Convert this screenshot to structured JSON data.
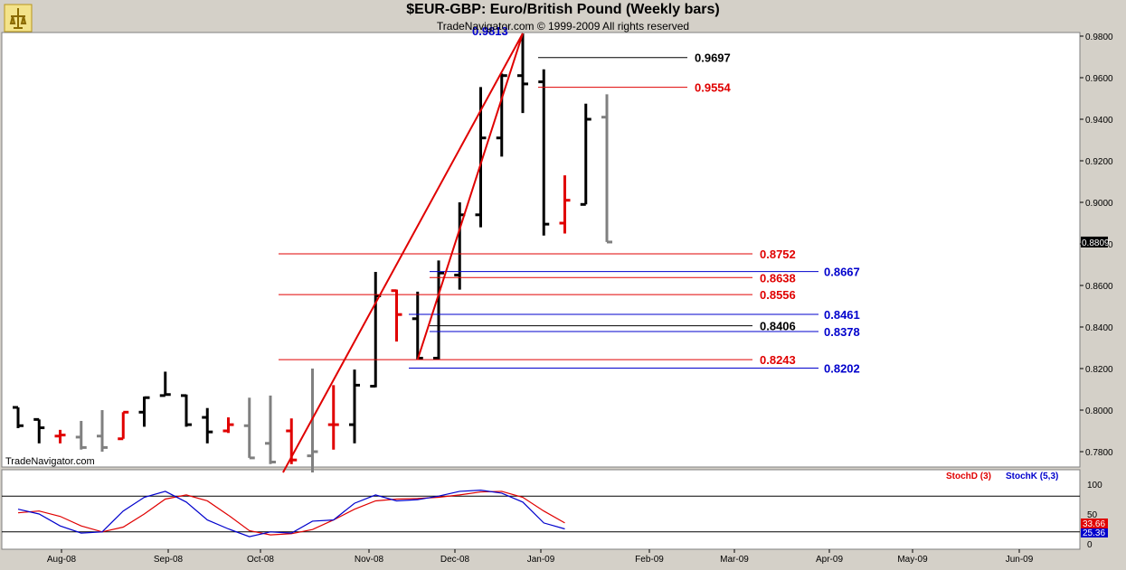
{
  "header": {
    "title": "$EUR-GBP:  Euro/British Pound  (Weekly bars)",
    "copyright": "TradeNavigator.com © 1999-2009 All rights reserved",
    "watermark": "TradeNavigator.com"
  },
  "chart_data": {
    "type": "ohlc",
    "ylim": [
      0.77,
      0.985
    ],
    "y_ticks": [
      "0.9800",
      "0.9600",
      "0.9400",
      "0.9200",
      "0.9000",
      "0.8800",
      "0.8600",
      "0.8400",
      "0.8200",
      "0.8000",
      "0.7800"
    ],
    "current_price_label": "0.8809",
    "x_labels": [
      "Aug-08",
      "Sep-08",
      "Oct-08",
      "Nov-08",
      "Dec-08",
      "Jan-09",
      "Feb-09",
      "Mar-09",
      "Apr-09",
      "May-09",
      "Jun-09"
    ],
    "top_label": "0.9813",
    "bars": [
      {
        "o": 0.8013,
        "h": 0.8013,
        "l": 0.7913,
        "c": 0.7925,
        "color": "#000000"
      },
      {
        "o": 0.7955,
        "h": 0.7955,
        "l": 0.784,
        "c": 0.7915,
        "color": "#000000"
      },
      {
        "o": 0.7875,
        "h": 0.7905,
        "l": 0.784,
        "c": 0.788,
        "color": "#e00000"
      },
      {
        "o": 0.787,
        "h": 0.7948,
        "l": 0.781,
        "c": 0.782,
        "color": "#808080"
      },
      {
        "o": 0.7875,
        "h": 0.8,
        "l": 0.78,
        "c": 0.782,
        "color": "#808080"
      },
      {
        "o": 0.7862,
        "h": 0.799,
        "l": 0.7862,
        "c": 0.799,
        "color": "#e00000"
      },
      {
        "o": 0.799,
        "h": 0.8065,
        "l": 0.792,
        "c": 0.806,
        "color": "#000000"
      },
      {
        "o": 0.807,
        "h": 0.8185,
        "l": 0.807,
        "c": 0.8075,
        "color": "#000000"
      },
      {
        "o": 0.807,
        "h": 0.8075,
        "l": 0.792,
        "c": 0.793,
        "color": "#000000"
      },
      {
        "o": 0.7965,
        "h": 0.801,
        "l": 0.784,
        "c": 0.7895,
        "color": "#000000"
      },
      {
        "o": 0.79,
        "h": 0.7965,
        "l": 0.789,
        "c": 0.793,
        "color": "#e00000"
      },
      {
        "o": 0.7925,
        "h": 0.806,
        "l": 0.777,
        "c": 0.777,
        "color": "#808080"
      },
      {
        "o": 0.784,
        "h": 0.807,
        "l": 0.774,
        "c": 0.775,
        "color": "#808080"
      },
      {
        "o": 0.79,
        "h": 0.796,
        "l": 0.774,
        "c": 0.776,
        "color": "#e00000"
      },
      {
        "o": 0.778,
        "h": 0.82,
        "l": 0.77,
        "c": 0.78,
        "color": "#808080"
      },
      {
        "o": 0.793,
        "h": 0.812,
        "l": 0.781,
        "c": 0.793,
        "color": "#e00000"
      },
      {
        "o": 0.793,
        "h": 0.8195,
        "l": 0.784,
        "c": 0.812,
        "color": "#000000"
      },
      {
        "o": 0.8115,
        "h": 0.8665,
        "l": 0.811,
        "c": 0.855,
        "color": "#000000"
      },
      {
        "o": 0.8575,
        "h": 0.858,
        "l": 0.833,
        "c": 0.846,
        "color": "#e00000"
      },
      {
        "o": 0.844,
        "h": 0.857,
        "l": 0.8243,
        "c": 0.825,
        "color": "#000000"
      },
      {
        "o": 0.825,
        "h": 0.872,
        "l": 0.8243,
        "c": 0.866,
        "color": "#000000"
      },
      {
        "o": 0.865,
        "h": 0.9,
        "l": 0.858,
        "c": 0.894,
        "color": "#000000"
      },
      {
        "o": 0.894,
        "h": 0.9555,
        "l": 0.888,
        "c": 0.931,
        "color": "#000000"
      },
      {
        "o": 0.931,
        "h": 0.962,
        "l": 0.922,
        "c": 0.961,
        "color": "#000000"
      },
      {
        "o": 0.961,
        "h": 0.9813,
        "l": 0.943,
        "c": 0.957,
        "color": "#000000"
      },
      {
        "o": 0.958,
        "h": 0.964,
        "l": 0.884,
        "c": 0.8895,
        "color": "#000000"
      },
      {
        "o": 0.89,
        "h": 0.913,
        "l": 0.885,
        "c": 0.901,
        "color": "#e00000"
      },
      {
        "o": 0.899,
        "h": 0.9475,
        "l": 0.899,
        "c": 0.94,
        "color": "#000000"
      },
      {
        "o": 0.941,
        "h": 0.952,
        "l": 0.8809,
        "c": 0.8809,
        "color": "#808080"
      }
    ],
    "levels": [
      {
        "value": 0.9697,
        "label": "0.9697",
        "color": "#000000"
      },
      {
        "value": 0.9554,
        "label": "0.9554",
        "color": "#e00000"
      },
      {
        "value": 0.8752,
        "label": "0.8752",
        "color": "#e00000"
      },
      {
        "value": 0.8667,
        "label": "0.8667",
        "color": "#0000cc"
      },
      {
        "value": 0.8638,
        "label": "0.8638",
        "color": "#e00000"
      },
      {
        "value": 0.8556,
        "label": "0.8556",
        "color": "#e00000"
      },
      {
        "value": 0.8461,
        "label": "0.8461",
        "color": "#0000cc"
      },
      {
        "value": 0.8406,
        "label": "0.8406",
        "color": "#000000"
      },
      {
        "value": 0.8378,
        "label": "0.8378",
        "color": "#0000cc"
      },
      {
        "value": 0.8243,
        "label": "0.8243",
        "color": "#e00000"
      },
      {
        "value": 0.8202,
        "label": "0.8202",
        "color": "#0000cc"
      }
    ],
    "stochastic": {
      "legend_d": "StochD (3)",
      "legend_k": "StochK (5,3)",
      "ticks": [
        "100",
        "50",
        "0"
      ],
      "value_d_label": "33.66",
      "value_k_label": "25.36",
      "d_values": [
        52,
        55,
        46,
        30,
        20,
        28,
        50,
        75,
        82,
        72,
        48,
        22,
        15,
        17,
        24,
        40,
        58,
        72,
        75,
        76,
        78,
        82,
        87,
        88,
        78,
        55,
        35
      ],
      "k_values": [
        58,
        50,
        30,
        18,
        20,
        55,
        78,
        88,
        70,
        40,
        25,
        12,
        20,
        18,
        38,
        40,
        68,
        82,
        72,
        74,
        80,
        88,
        90,
        85,
        70,
        35,
        25
      ]
    }
  },
  "colors": {
    "red": "#e00000",
    "blue": "#0000cc",
    "grey": "#808080",
    "black": "#000000"
  }
}
